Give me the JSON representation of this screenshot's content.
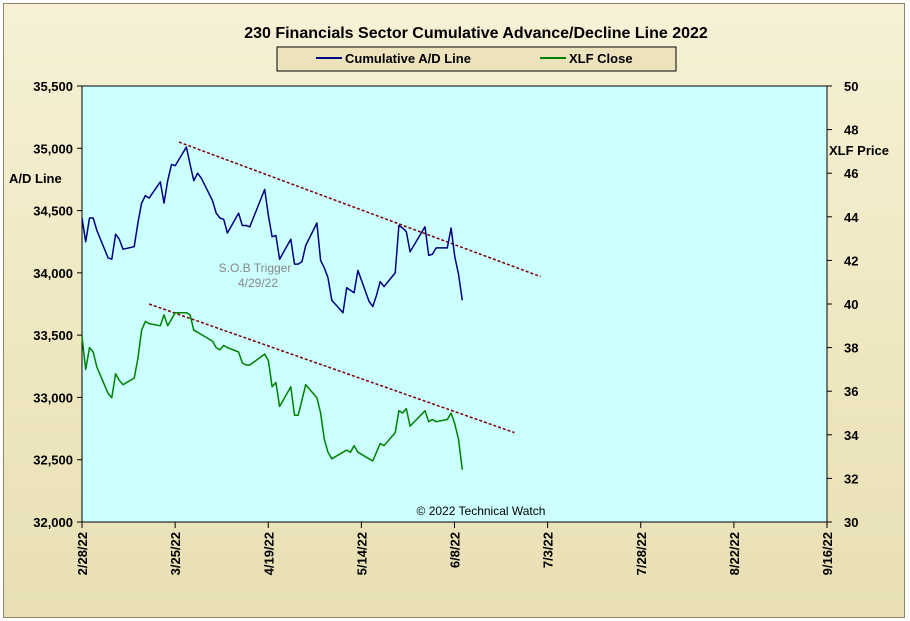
{
  "chart_data": {
    "type": "line",
    "title": "230 Financials  Sector Cumulative  Advance/Decline  Line 2022",
    "ylabel_left": "A/D Line",
    "ylabel_right": "XLF Price",
    "ylim_left": [
      32000,
      35500
    ],
    "ylim_right": [
      30,
      50
    ],
    "yticks_left": [
      "32,000",
      "32,500",
      "33,000",
      "33,500",
      "34,000",
      "34,500",
      "35,000",
      "35,500"
    ],
    "yticks_right": [
      "30",
      "32",
      "34",
      "36",
      "38",
      "40",
      "42",
      "44",
      "46",
      "48",
      "50"
    ],
    "xticks": [
      "2/28/22",
      "3/25/22",
      "4/19/22",
      "5/14/22",
      "6/8/22",
      "7/3/22",
      "7/28/22",
      "8/22/22",
      "9/16/22"
    ],
    "legend": {
      "position": "top-center",
      "entries": [
        "Cumulative A/D Line",
        "XLF Close"
      ]
    },
    "grid": false,
    "colors": {
      "ad_line": "#000080",
      "xlf_line": "#008000",
      "trend": "#7a0000",
      "plot_bg": "#ccffff"
    },
    "annotations": {
      "sob_line1": "S.O.B  Trigger",
      "sob_line2": "4/29/22",
      "copyright": "© 2022  Technical Watch"
    },
    "series": [
      {
        "name": "Cumulative A/D Line",
        "axis": "left",
        "x": [
          "2022-02-28",
          "2022-03-01",
          "2022-03-02",
          "2022-03-03",
          "2022-03-04",
          "2022-03-07",
          "2022-03-08",
          "2022-03-09",
          "2022-03-10",
          "2022-03-11",
          "2022-03-14",
          "2022-03-15",
          "2022-03-16",
          "2022-03-17",
          "2022-03-18",
          "2022-03-21",
          "2022-03-22",
          "2022-03-23",
          "2022-03-24",
          "2022-03-25",
          "2022-03-28",
          "2022-03-29",
          "2022-03-30",
          "2022-03-31",
          "2022-04-01",
          "2022-04-04",
          "2022-04-05",
          "2022-04-06",
          "2022-04-07",
          "2022-04-08",
          "2022-04-11",
          "2022-04-12",
          "2022-04-13",
          "2022-04-14",
          "2022-04-18",
          "2022-04-19",
          "2022-04-20",
          "2022-04-21",
          "2022-04-22",
          "2022-04-25",
          "2022-04-26",
          "2022-04-27",
          "2022-04-28",
          "2022-04-29",
          "2022-05-02",
          "2022-05-03",
          "2022-05-04",
          "2022-05-05",
          "2022-05-06",
          "2022-05-09",
          "2022-05-10",
          "2022-05-11",
          "2022-05-12",
          "2022-05-13",
          "2022-05-16",
          "2022-05-17",
          "2022-05-18",
          "2022-05-19",
          "2022-05-20",
          "2022-05-23",
          "2022-05-24",
          "2022-05-25",
          "2022-05-26",
          "2022-05-27",
          "2022-05-31",
          "2022-06-01",
          "2022-06-02",
          "2022-06-03",
          "2022-06-06",
          "2022-06-07",
          "2022-06-08",
          "2022-06-09",
          "2022-06-10"
        ],
        "values": [
          34440,
          34250,
          34440,
          34440,
          34340,
          34120,
          34110,
          34310,
          34270,
          34190,
          34210,
          34400,
          34560,
          34620,
          34600,
          34730,
          34560,
          34740,
          34870,
          34860,
          35010,
          34870,
          34740,
          34800,
          34760,
          34580,
          34480,
          34440,
          34430,
          34320,
          34480,
          34380,
          34380,
          34370,
          34670,
          34460,
          34290,
          34300,
          34110,
          34270,
          34070,
          34070,
          34090,
          34220,
          34400,
          34100,
          34040,
          33960,
          33780,
          33680,
          33880,
          33860,
          33840,
          34020,
          33770,
          33730,
          33820,
          33930,
          33890,
          34000,
          34380,
          34360,
          34330,
          34170,
          34370,
          34140,
          34150,
          34200,
          34200,
          34360,
          34130,
          33990,
          33780
        ]
      },
      {
        "name": "XLF Close",
        "axis": "right",
        "x": [
          "2022-02-28",
          "2022-03-01",
          "2022-03-02",
          "2022-03-03",
          "2022-03-04",
          "2022-03-07",
          "2022-03-08",
          "2022-03-09",
          "2022-03-10",
          "2022-03-11",
          "2022-03-14",
          "2022-03-15",
          "2022-03-16",
          "2022-03-17",
          "2022-03-18",
          "2022-03-21",
          "2022-03-22",
          "2022-03-23",
          "2022-03-24",
          "2022-03-25",
          "2022-03-28",
          "2022-03-29",
          "2022-03-30",
          "2022-03-31",
          "2022-04-01",
          "2022-04-04",
          "2022-04-05",
          "2022-04-06",
          "2022-04-07",
          "2022-04-08",
          "2022-04-11",
          "2022-04-12",
          "2022-04-13",
          "2022-04-14",
          "2022-04-18",
          "2022-04-19",
          "2022-04-20",
          "2022-04-21",
          "2022-04-22",
          "2022-04-25",
          "2022-04-26",
          "2022-04-27",
          "2022-04-28",
          "2022-04-29",
          "2022-05-02",
          "2022-05-03",
          "2022-05-04",
          "2022-05-05",
          "2022-05-06",
          "2022-05-09",
          "2022-05-10",
          "2022-05-11",
          "2022-05-12",
          "2022-05-13",
          "2022-05-16",
          "2022-05-17",
          "2022-05-18",
          "2022-05-19",
          "2022-05-20",
          "2022-05-23",
          "2022-05-24",
          "2022-05-25",
          "2022-05-26",
          "2022-05-27",
          "2022-05-31",
          "2022-06-01",
          "2022-06-02",
          "2022-06-03",
          "2022-06-06",
          "2022-06-07",
          "2022-06-08",
          "2022-06-09",
          "2022-06-10"
        ],
        "values": [
          38.5,
          37.0,
          38.0,
          37.8,
          37.1,
          35.9,
          35.7,
          36.8,
          36.5,
          36.3,
          36.6,
          37.5,
          38.8,
          39.2,
          39.1,
          39.0,
          39.5,
          39.0,
          39.3,
          39.6,
          39.6,
          39.5,
          38.8,
          38.7,
          38.6,
          38.3,
          38.0,
          37.9,
          38.1,
          38.0,
          37.8,
          37.3,
          37.2,
          37.2,
          37.7,
          37.4,
          36.2,
          36.4,
          35.3,
          36.2,
          34.9,
          34.9,
          35.6,
          36.3,
          35.7,
          35.0,
          33.8,
          33.2,
          32.9,
          33.2,
          33.3,
          33.2,
          33.5,
          33.2,
          32.9,
          32.8,
          33.2,
          33.6,
          33.5,
          34.1,
          35.1,
          35.0,
          35.2,
          34.4,
          35.1,
          34.6,
          34.7,
          34.6,
          34.7,
          35.0,
          34.5,
          33.8,
          32.4
        ]
      }
    ],
    "trendlines": [
      {
        "axis": "left",
        "x": [
          "2022-03-26",
          "2022-07-01"
        ],
        "y": [
          35050,
          33970
        ]
      },
      {
        "axis": "right",
        "x": [
          "2022-03-18",
          "2022-06-24"
        ],
        "y": [
          40.0,
          34.1
        ]
      }
    ]
  }
}
